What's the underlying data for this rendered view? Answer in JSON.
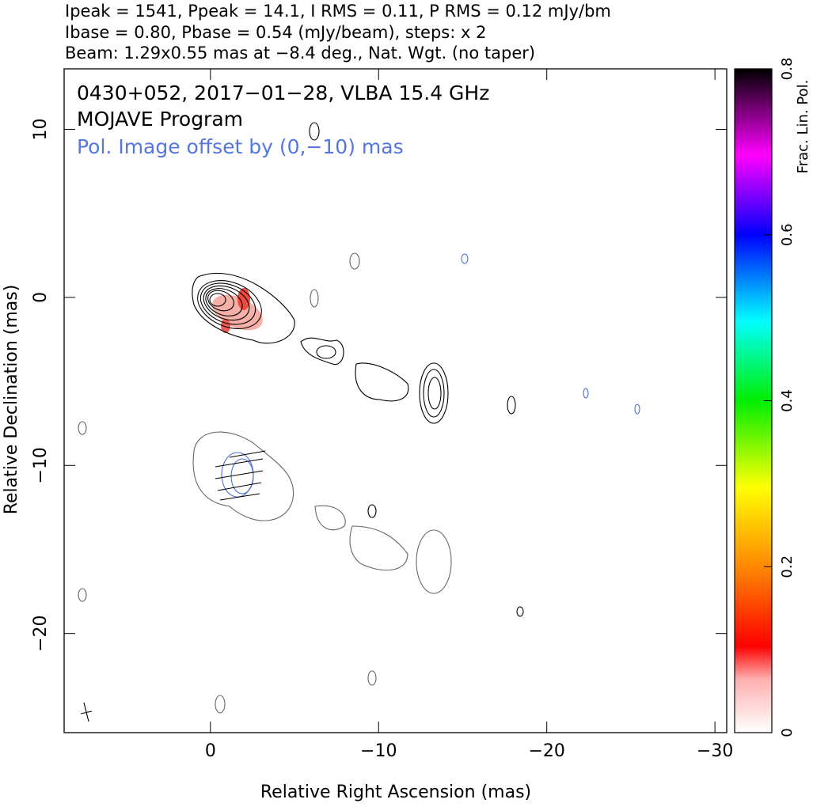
{
  "chart_data": {
    "type": "contour",
    "header": [
      "Ipeak = 1541, Ppeak = 14.1, I RMS = 0.11, P RMS = 0.12 mJy/bm",
      "Ibase = 0.80, Pbase = 0.54 (mJy/beam), steps: x 2",
      "Beam: 1.29x0.55 mas at −8.4 deg., Nat. Wgt. (no taper)"
    ],
    "title": "0430+052, 2017−01−28, VLBA 15.4 GHz",
    "subtitle": "MOJAVE Program",
    "annotation": "Pol. Image offset by (0,−10) mas",
    "annotation_color": "#5577dd",
    "x_label": "Relative Right Ascension (mas)",
    "y_label": "Relative Declination (mas)",
    "xlim": [
      8.7,
      -30.7
    ],
    "xticks": [
      0,
      {
        "value": -10,
        "label": "−10"
      },
      {
        "value": -20,
        "label": "−20"
      },
      {
        "value": -30,
        "label": "−30"
      }
    ],
    "ylim": [
      -25.9,
      13.6
    ],
    "yticks": [
      {
        "value": -20,
        "label": "−20"
      },
      {
        "value": -10,
        "label": "−10"
      },
      0,
      10
    ],
    "colorbar": {
      "label": "Frac. Lin. Pol.",
      "lim": [
        0,
        0.8
      ],
      "ticks": [
        0,
        0.2,
        0.4,
        0.6,
        0.8
      ]
    }
  }
}
